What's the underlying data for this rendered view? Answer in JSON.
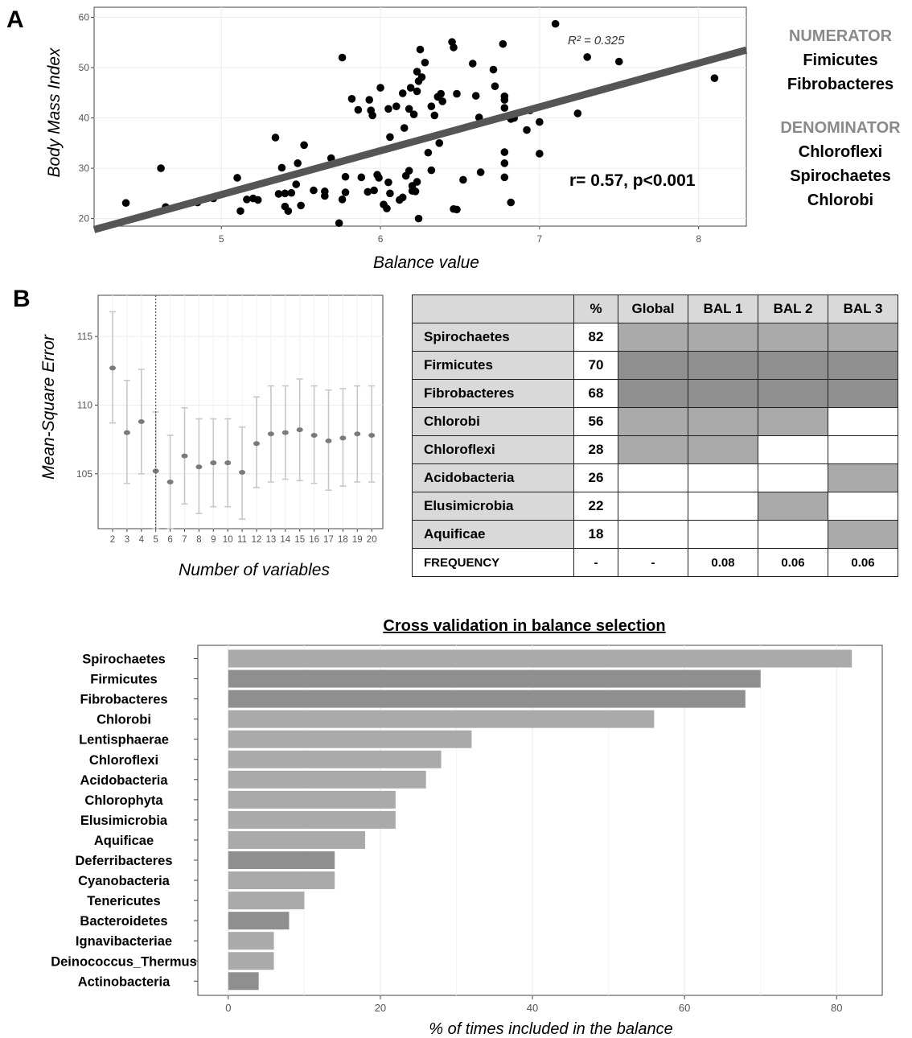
{
  "panel_labels": {
    "a": "A",
    "b": "B"
  },
  "legend": {
    "numerator_title": "NUMERATOR",
    "numerator_items": [
      "Fimicutes",
      "Fibrobacteres"
    ],
    "denominator_title": "DENOMINATOR",
    "denominator_items": [
      "Chloroflexi",
      "Spirochaetes",
      "Chlorobi"
    ]
  },
  "colors": {
    "light_gray": "#aaaaaa",
    "dark_gray": "#8f8f8f",
    "white": "#ffffff",
    "regression_line": "#555555"
  },
  "chart_data": [
    {
      "type": "scatter",
      "xlabel": "Balance value",
      "ylabel": "Body Mass Index",
      "xlim": [
        4.2,
        8.3
      ],
      "ylim": [
        18.5,
        62
      ],
      "xticks": [
        "5",
        "6",
        "7",
        "8"
      ],
      "yticks": [
        "20",
        "30",
        "40",
        "50",
        "60"
      ],
      "annotation_r2": "R² = 0.325",
      "annotation_stats": "r= 0.57, p<0.001",
      "regression": {
        "x1": 4.2,
        "y1": 17.8,
        "x2": 8.3,
        "y2": 53.5
      },
      "points": [
        [
          4.4,
          23.1
        ],
        [
          4.62,
          30
        ],
        [
          4.65,
          22.3
        ],
        [
          4.85,
          23.2
        ],
        [
          4.95,
          24
        ],
        [
          5.1,
          28.1
        ],
        [
          5.12,
          21.5
        ],
        [
          5.16,
          23.8
        ],
        [
          5.2,
          24
        ],
        [
          5.23,
          23.7
        ],
        [
          5.34,
          36.1
        ],
        [
          5.36,
          24.9
        ],
        [
          5.38,
          30.1
        ],
        [
          5.4,
          22.4
        ],
        [
          5.42,
          21.5
        ],
        [
          5.4,
          25
        ],
        [
          5.44,
          25.1
        ],
        [
          5.47,
          26.8
        ],
        [
          5.48,
          31
        ],
        [
          5.5,
          22.6
        ],
        [
          5.52,
          34.6
        ],
        [
          5.58,
          25.6
        ],
        [
          5.65,
          25.4
        ],
        [
          5.65,
          24.5
        ],
        [
          5.69,
          32
        ],
        [
          5.74,
          19.1
        ],
        [
          5.76,
          23.8
        ],
        [
          5.76,
          52
        ],
        [
          5.78,
          28.3
        ],
        [
          5.78,
          25.2
        ],
        [
          5.82,
          43.8
        ],
        [
          5.86,
          41.6
        ],
        [
          5.88,
          28.2
        ],
        [
          5.92,
          25.3
        ],
        [
          5.93,
          43.6
        ],
        [
          5.94,
          41.5
        ],
        [
          5.95,
          40.5
        ],
        [
          5.96,
          25.6
        ],
        [
          5.98,
          28.7
        ],
        [
          5.99,
          28.1
        ],
        [
          6.0,
          46
        ],
        [
          6.02,
          22.8
        ],
        [
          6.04,
          22
        ],
        [
          6.06,
          25
        ],
        [
          6.05,
          27.2
        ],
        [
          6.05,
          41.8
        ],
        [
          6.06,
          36.2
        ],
        [
          6.1,
          42.3
        ],
        [
          6.12,
          23.7
        ],
        [
          6.14,
          24.2
        ],
        [
          6.14,
          44.9
        ],
        [
          6.15,
          38
        ],
        [
          6.16,
          28.5
        ],
        [
          6.18,
          29.5
        ],
        [
          6.18,
          41.8
        ],
        [
          6.19,
          46
        ],
        [
          6.2,
          26.5
        ],
        [
          6.2,
          25.5
        ],
        [
          6.21,
          40.7
        ],
        [
          6.22,
          25.4
        ],
        [
          6.23,
          27.3
        ],
        [
          6.23,
          49.2
        ],
        [
          6.23,
          45.3
        ],
        [
          6.24,
          20
        ],
        [
          6.24,
          47.3
        ],
        [
          6.25,
          53.6
        ],
        [
          6.26,
          48.1
        ],
        [
          6.28,
          51
        ],
        [
          6.3,
          33.1
        ],
        [
          6.32,
          29.6
        ],
        [
          6.32,
          42.3
        ],
        [
          6.34,
          40.5
        ],
        [
          6.36,
          44.2
        ],
        [
          6.37,
          35
        ],
        [
          6.38,
          44.8
        ],
        [
          6.39,
          43.3
        ],
        [
          6.45,
          55.1
        ],
        [
          6.46,
          21.9
        ],
        [
          6.46,
          54
        ],
        [
          6.48,
          21.8
        ],
        [
          6.48,
          44.8
        ],
        [
          6.52,
          27.7
        ],
        [
          6.58,
          50.8
        ],
        [
          6.6,
          44.4
        ],
        [
          6.62,
          40.1
        ],
        [
          6.63,
          29.2
        ],
        [
          6.71,
          49.6
        ],
        [
          6.72,
          46.3
        ],
        [
          6.77,
          54.7
        ],
        [
          6.78,
          42
        ],
        [
          6.78,
          44.3
        ],
        [
          6.78,
          43.6
        ],
        [
          6.78,
          33.2
        ],
        [
          6.78,
          31
        ],
        [
          6.78,
          28.2
        ],
        [
          6.82,
          23.2
        ],
        [
          6.82,
          39.8
        ],
        [
          6.84,
          40
        ],
        [
          6.92,
          37.6
        ],
        [
          6.94,
          41.5
        ],
        [
          7.0,
          32.9
        ],
        [
          7.0,
          39.2
        ],
        [
          7.1,
          58.7
        ],
        [
          7.24,
          40.9
        ],
        [
          7.3,
          52.1
        ],
        [
          7.5,
          51.2
        ],
        [
          8.1,
          47.9
        ]
      ]
    },
    {
      "type": "line",
      "xlabel": "Number of variables",
      "ylabel": "Mean-Square Error",
      "ylim": [
        101,
        118
      ],
      "yticks": [
        "105",
        "110",
        "115"
      ],
      "vline_at": 5,
      "x": [
        2,
        3,
        4,
        5,
        6,
        7,
        8,
        9,
        10,
        11,
        12,
        13,
        14,
        15,
        16,
        17,
        18,
        19,
        20
      ],
      "mean": [
        112.7,
        108,
        108.8,
        105.2,
        104.4,
        106.3,
        105.5,
        105.8,
        105.8,
        105.1,
        107.2,
        107.9,
        108,
        108.2,
        107.8,
        107.4,
        107.6,
        107.9,
        107.8
      ],
      "upper": [
        116.8,
        111.8,
        112.6,
        109.5,
        107.8,
        109.8,
        109,
        109,
        109,
        108.4,
        110.6,
        111.4,
        111.4,
        111.9,
        111.4,
        111.1,
        111.2,
        111.4,
        111.4
      ],
      "lower": [
        108.7,
        104.3,
        105,
        101,
        101,
        102.8,
        102.1,
        102.6,
        102.6,
        101.7,
        104,
        104.4,
        104.6,
        104.5,
        104.3,
        103.8,
        104.1,
        104.4,
        104.4
      ]
    },
    {
      "type": "table",
      "headers": [
        "",
        "%",
        "Global",
        "BAL 1",
        "BAL 2",
        "BAL 3"
      ],
      "rows": [
        {
          "name": "Spirochaetes",
          "pct": "82",
          "cells": [
            "l",
            "l",
            "l",
            "l"
          ]
        },
        {
          "name": "Firmicutes",
          "pct": "70",
          "cells": [
            "d",
            "d",
            "d",
            "d"
          ]
        },
        {
          "name": "Fibrobacteres",
          "pct": "68",
          "cells": [
            "d",
            "d",
            "d",
            "d"
          ]
        },
        {
          "name": "Chlorobi",
          "pct": "56",
          "cells": [
            "l",
            "l",
            "l",
            "w"
          ]
        },
        {
          "name": "Chloroflexi",
          "pct": "28",
          "cells": [
            "l",
            "l",
            "w",
            "w"
          ]
        },
        {
          "name": "Acidobacteria",
          "pct": "26",
          "cells": [
            "w",
            "w",
            "w",
            "l"
          ]
        },
        {
          "name": "Elusimicrobia",
          "pct": "22",
          "cells": [
            "w",
            "w",
            "l",
            "w"
          ]
        },
        {
          "name": "Aquificae",
          "pct": "18",
          "cells": [
            "w",
            "w",
            "w",
            "l"
          ]
        }
      ],
      "frequency_row": {
        "name": "FREQUENCY",
        "values": [
          "-",
          "-",
          "0.08",
          "0.06",
          "0.06"
        ]
      }
    },
    {
      "type": "bar",
      "orientation": "horizontal",
      "title": "Cross validation in balance selection",
      "xlabel": "% of times included in the balance",
      "xlim": [
        -4,
        86
      ],
      "xticks": [
        "0",
        "20",
        "40",
        "60",
        "80"
      ],
      "categories": [
        "Spirochaetes",
        "Firmicutes",
        "Fibrobacteres",
        "Chlorobi",
        "Lentisphaerae",
        "Chloroflexi",
        "Acidobacteria",
        "Chlorophyta",
        "Elusimicrobia",
        "Aquificae",
        "Deferribacteres",
        "Cyanobacteria",
        "Tenericutes",
        "Bacteroidetes",
        "Ignavibacteriae",
        "Deinococcus_Thermus",
        "Actinobacteria"
      ],
      "values": [
        82,
        70,
        68,
        56,
        32,
        28,
        26,
        22,
        22,
        18,
        14,
        14,
        10,
        8,
        6,
        6,
        4
      ],
      "shades": [
        "l",
        "d",
        "d",
        "l",
        "l",
        "l",
        "l",
        "l",
        "l",
        "l",
        "d",
        "l",
        "l",
        "d",
        "l",
        "l",
        "d"
      ]
    }
  ]
}
